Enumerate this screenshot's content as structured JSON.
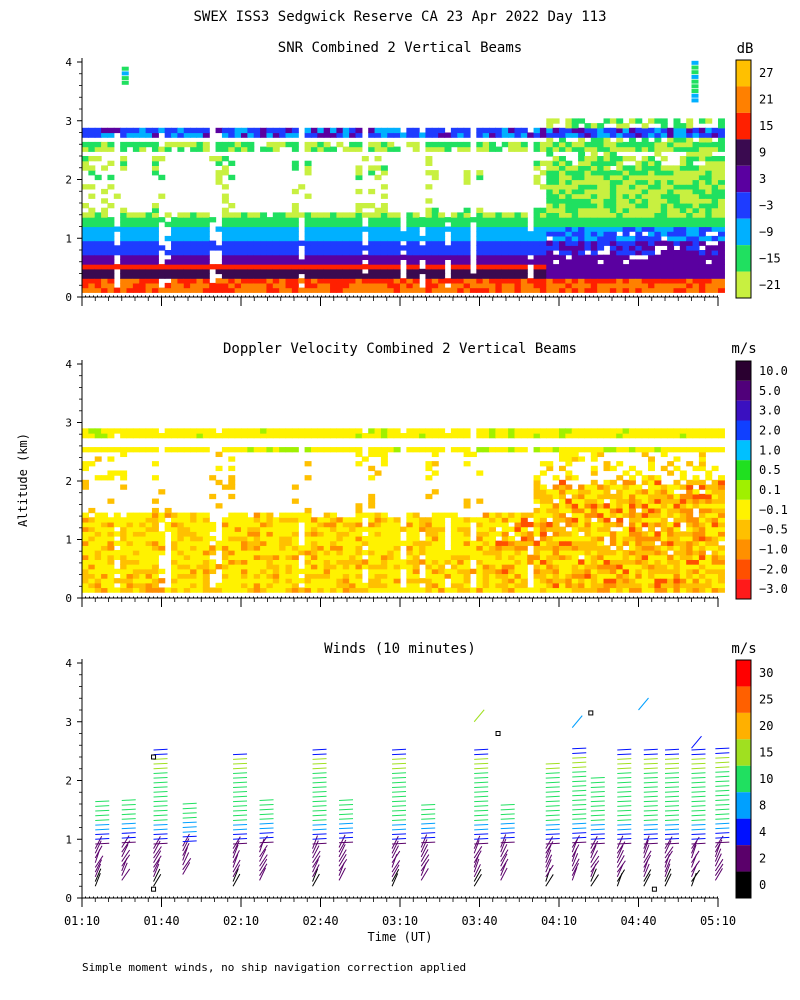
{
  "figure": {
    "title": "SWEX ISS3 Sedgwick Reserve CA  23 Apr 2022 Day 113",
    "ylabel": "Altitude (km)",
    "xlabel": "Time (UT)",
    "footnote": "Simple moment winds, no ship navigation correction applied"
  },
  "chart_data": [
    {
      "type": "heatmap",
      "title": "SNR Combined 2 Vertical Beams",
      "ylabel": "Altitude (km)",
      "ylim": [
        0,
        4
      ],
      "yticks": [
        "0",
        "1",
        "2",
        "3",
        "4"
      ],
      "xlim_minutes_ut": [
        70,
        310
      ],
      "colorbar": {
        "unit": "dB",
        "labels": [
          "27",
          "21",
          "15",
          "9",
          "3",
          "−3",
          "−9",
          "−15",
          "−21"
        ],
        "colors": [
          "#ffc000",
          "#ff8000",
          "#ff2000",
          "#3a0a50",
          "#5a00a0",
          "#1e3cff",
          "#00b0ff",
          "#20e060",
          "#c8f040"
        ]
      }
    },
    {
      "type": "heatmap",
      "title": "Doppler Velocity Combined 2 Vertical Beams",
      "ylabel": "Altitude (km)",
      "ylim": [
        0,
        4
      ],
      "yticks": [
        "0",
        "1",
        "2",
        "3",
        "4"
      ],
      "xlim_minutes_ut": [
        70,
        310
      ],
      "colorbar": {
        "unit": "m/s",
        "labels": [
          "10.0",
          "5.0",
          "3.0",
          "2.0",
          "1.0",
          "0.5",
          "0.1",
          "−0.1",
          "−0.5",
          "−1.0",
          "−2.0",
          "−3.0"
        ],
        "colors": [
          "#2a0030",
          "#50007a",
          "#3a10c0",
          "#1040ff",
          "#00c0ff",
          "#20e020",
          "#a0f000",
          "#fff200",
          "#ffc000",
          "#ff9000",
          "#ff5000",
          "#ff1a1a"
        ]
      }
    },
    {
      "type": "scatter",
      "subtype": "wind-barbs",
      "title": "Winds (10 minutes)",
      "ylabel": "Altitude (km)",
      "xlabel": "Time (UT)",
      "ylim": [
        0,
        4
      ],
      "yticks": [
        "0",
        "1",
        "2",
        "3",
        "4"
      ],
      "xlim_minutes_ut": [
        70,
        310
      ],
      "xticks": [
        "01:10",
        "01:40",
        "02:10",
        "02:40",
        "03:10",
        "03:40",
        "04:10",
        "04:40",
        "05:10"
      ],
      "colorbar": {
        "unit": "m/s",
        "labels": [
          "30",
          "25",
          "20",
          "15",
          "10",
          "8",
          "4",
          "2",
          "0"
        ],
        "colors": [
          "#ff0000",
          "#ff6000",
          "#ffb000",
          "#a0e020",
          "#20e060",
          "#00a0ff",
          "#0010ff",
          "#5a006a",
          "#000000"
        ]
      },
      "profiles": [
        {
          "t": 75,
          "bottom": 0.2,
          "top": 1.7,
          "speed": 5
        },
        {
          "t": 85,
          "bottom": 0.3,
          "top": 1.7,
          "speed": 10
        },
        {
          "t": 97,
          "bottom": 0.2,
          "top": 2.6,
          "speed": 13
        },
        {
          "t": 108,
          "bottom": 0.4,
          "top": 1.65,
          "speed": 11
        },
        {
          "t": 127,
          "bottom": 0.2,
          "top": 2.5,
          "speed": 12
        },
        {
          "t": 137,
          "bottom": 0.3,
          "top": 1.7,
          "speed": 11
        },
        {
          "t": 157,
          "bottom": 0.2,
          "top": 2.55,
          "speed": 12
        },
        {
          "t": 167,
          "bottom": 0.3,
          "top": 1.7,
          "speed": 11
        },
        {
          "t": 187,
          "bottom": 0.2,
          "top": 2.55,
          "speed": 12
        },
        {
          "t": 198,
          "bottom": 0.3,
          "top": 1.6,
          "speed": 11
        },
        {
          "t": 218,
          "bottom": 0.2,
          "top": 2.6,
          "speed": 12
        },
        {
          "t": 228,
          "bottom": 0.3,
          "top": 1.65,
          "speed": 11
        },
        {
          "t": 245,
          "bottom": 0.2,
          "top": 2.3,
          "speed": 12
        },
        {
          "t": 255,
          "bottom": 0.3,
          "top": 2.6,
          "speed": 13
        },
        {
          "t": 262,
          "bottom": 0.2,
          "top": 2.1,
          "speed": 12
        },
        {
          "t": 272,
          "bottom": 0.2,
          "top": 2.55,
          "speed": 12
        },
        {
          "t": 282,
          "bottom": 0.2,
          "top": 2.55,
          "speed": 13
        },
        {
          "t": 290,
          "bottom": 0.2,
          "top": 2.6,
          "speed": 13
        },
        {
          "t": 300,
          "bottom": 0.2,
          "top": 2.6,
          "speed": 13
        },
        {
          "t": 309,
          "bottom": 0.3,
          "top": 2.6,
          "speed": 13
        }
      ]
    }
  ]
}
